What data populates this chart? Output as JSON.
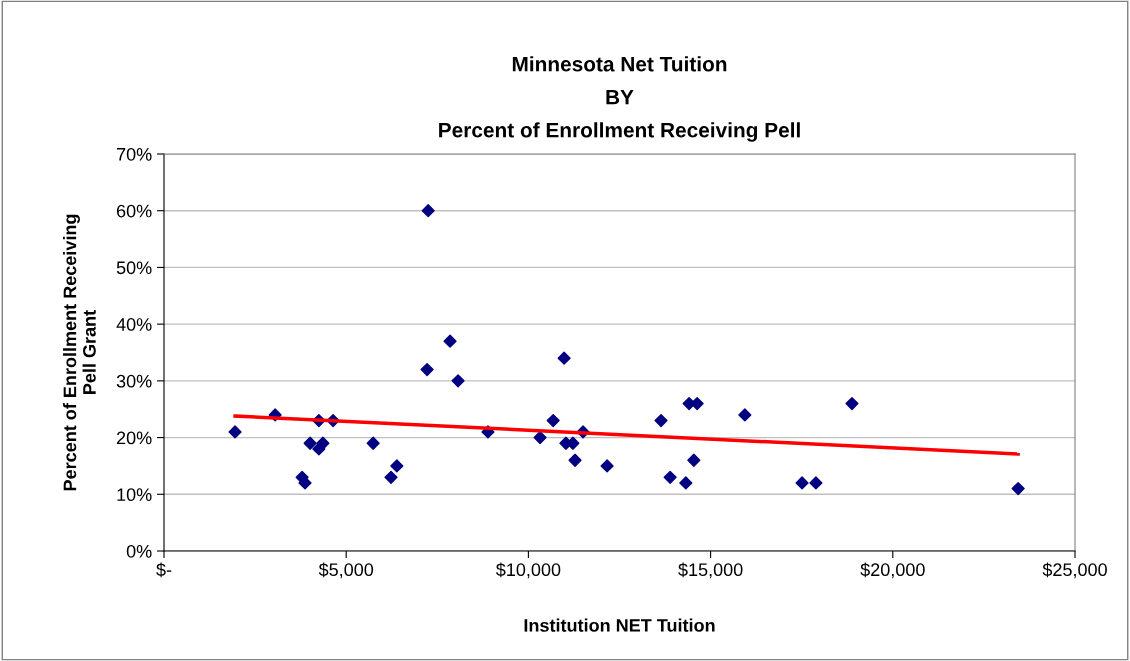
{
  "chart_data": {
    "type": "scatter",
    "title": "Minnesota Net Tuition\nBY\nPercent of Enrollment Receiving Pell",
    "xlabel": "Institution NET Tuition",
    "ylabel": "Percent of Enrollment Receiving\nPell Grant",
    "marker": "diamond",
    "grid": "y",
    "legend": false,
    "series": [
      {
        "color": "#000080",
        "x": [
          1950,
          3050,
          3790,
          3870,
          4010,
          4250,
          4250,
          4360,
          4640,
          5740,
          6230,
          6390,
          7220,
          7250,
          7850,
          8070,
          8890,
          10320,
          10680,
          10980,
          11030,
          11220,
          11280,
          11500,
          12160,
          13640,
          13890,
          14320,
          14410,
          14630,
          14540,
          15940,
          17510,
          17890,
          18880,
          23440
        ],
        "values": [
          21,
          24,
          13,
          12,
          19,
          23,
          18,
          19,
          23,
          19,
          13,
          15,
          32,
          60,
          37,
          30,
          21,
          20,
          23,
          34,
          19,
          19,
          16,
          21,
          15,
          23,
          13,
          12,
          26,
          26,
          16,
          24,
          12,
          12,
          26,
          11
        ]
      },
      {
        "type": "line",
        "color": "#ff0000",
        "marker": "none",
        "x": [
          1950,
          23440
        ],
        "values": [
          23.8,
          17.1
        ]
      }
    ],
    "xlim": [
      0,
      25000
    ],
    "xticks": [
      {
        "value": 0,
        "label": "$-"
      },
      {
        "value": 5000,
        "label": "$5,000"
      },
      {
        "value": 10000,
        "label": "$10,000"
      },
      {
        "value": 15000,
        "label": "$15,000"
      },
      {
        "value": 20000,
        "label": "$20,000"
      },
      {
        "value": 25000,
        "label": "$25,000"
      }
    ],
    "ylim": [
      0,
      70
    ],
    "yticks": [
      {
        "value": 0,
        "label": "0%"
      },
      {
        "value": 10,
        "label": "10%"
      },
      {
        "value": 20,
        "label": "20%"
      },
      {
        "value": 30,
        "label": "30%"
      },
      {
        "value": 40,
        "label": "40%"
      },
      {
        "value": 50,
        "label": "50%"
      },
      {
        "value": 60,
        "label": "60%"
      },
      {
        "value": 70,
        "label": "70%"
      }
    ]
  }
}
